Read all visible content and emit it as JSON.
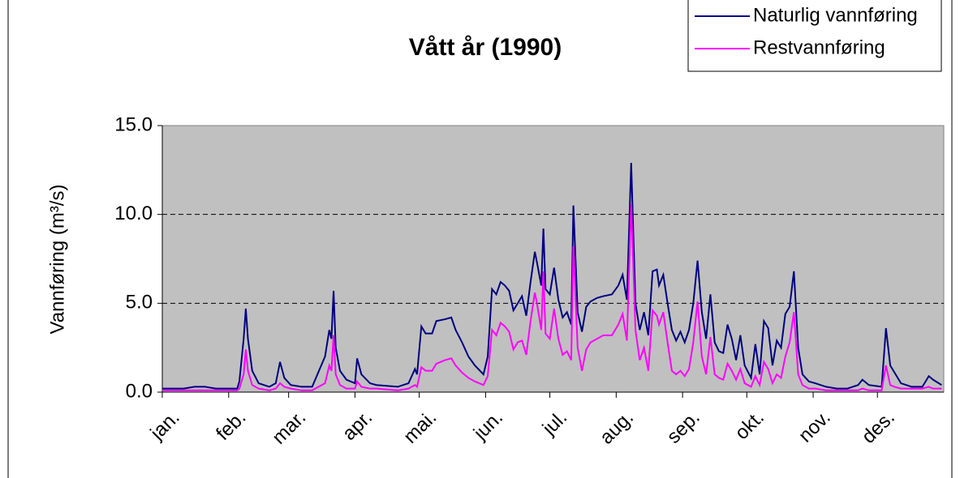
{
  "chart_data": {
    "type": "line",
    "title": "Vått år (1990)",
    "ylabel": "Vannføring (m³/s)",
    "x": [
      0,
      5,
      10,
      15,
      20,
      25,
      30,
      35,
      36,
      38,
      39,
      40,
      42,
      45,
      50,
      53,
      55,
      57,
      60,
      65,
      70,
      76,
      78,
      79,
      80,
      81,
      83,
      86,
      90,
      91,
      93,
      97,
      100,
      110,
      115,
      118,
      119,
      121,
      123,
      126,
      128,
      132,
      135,
      137,
      140,
      143,
      146,
      150,
      152,
      154,
      156,
      158,
      160,
      162,
      164,
      166,
      168,
      170,
      172,
      174,
      175,
      177,
      178,
      179,
      181,
      183,
      185,
      187,
      189,
      191,
      192,
      194,
      196,
      198,
      200,
      203,
      206,
      210,
      213,
      215,
      217,
      219,
      221,
      223,
      225,
      227,
      229,
      231,
      232,
      234,
      236,
      238,
      240,
      242,
      244,
      246,
      248,
      250,
      252,
      254,
      256,
      258,
      260,
      262,
      264,
      266,
      268,
      270,
      272,
      275,
      277,
      279,
      281,
      283,
      285,
      287,
      289,
      291,
      293,
      295,
      297,
      299,
      302,
      305,
      310,
      315,
      320,
      325,
      327,
      330,
      336,
      338,
      340,
      342,
      345,
      350,
      355,
      358,
      360,
      364
    ],
    "series": [
      {
        "name": "Naturlig vannføring",
        "color": "#000080",
        "values": [
          0.2,
          0.2,
          0.2,
          0.3,
          0.3,
          0.2,
          0.2,
          0.2,
          0.6,
          3.0,
          4.7,
          3.0,
          1.2,
          0.5,
          0.3,
          0.5,
          1.7,
          0.8,
          0.4,
          0.3,
          0.3,
          2.0,
          3.5,
          3.0,
          5.7,
          2.5,
          1.2,
          0.7,
          0.5,
          1.9,
          1.0,
          0.5,
          0.4,
          0.3,
          0.5,
          1.3,
          1.0,
          3.7,
          3.3,
          3.3,
          4.0,
          4.1,
          4.2,
          3.5,
          2.8,
          2.0,
          1.5,
          1.0,
          2.0,
          5.8,
          5.5,
          6.2,
          6.0,
          5.7,
          4.6,
          5.0,
          5.4,
          4.3,
          6.2,
          7.9,
          7.3,
          6.0,
          9.2,
          5.8,
          5.5,
          7.0,
          5.2,
          4.2,
          4.5,
          3.8,
          10.5,
          4.5,
          3.4,
          4.8,
          5.1,
          5.3,
          5.4,
          5.5,
          6.0,
          6.6,
          5.2,
          12.9,
          5.0,
          3.5,
          4.5,
          3.2,
          6.8,
          6.9,
          6.0,
          6.6,
          5.0,
          3.5,
          2.9,
          3.4,
          2.8,
          3.5,
          5.0,
          7.4,
          4.5,
          3.0,
          5.5,
          2.8,
          2.3,
          2.2,
          3.8,
          3.0,
          1.8,
          3.2,
          1.5,
          0.8,
          2.7,
          1.0,
          4.0,
          3.6,
          1.5,
          2.9,
          2.5,
          4.4,
          4.8,
          6.8,
          2.5,
          1.0,
          0.6,
          0.5,
          0.3,
          0.2,
          0.2,
          0.4,
          0.7,
          0.4,
          0.3,
          3.6,
          1.5,
          1.1,
          0.5,
          0.3,
          0.3,
          0.9,
          0.7,
          0.4
        ]
      },
      {
        "name": "Restvannføring",
        "color": "#ff00ff",
        "values": [
          0.1,
          0.1,
          0.1,
          0.1,
          0.1,
          0.1,
          0.1,
          0.1,
          0.2,
          1.0,
          2.4,
          1.2,
          0.4,
          0.2,
          0.1,
          0.2,
          0.5,
          0.3,
          0.2,
          0.1,
          0.1,
          0.5,
          1.5,
          1.2,
          3.2,
          1.0,
          0.4,
          0.2,
          0.2,
          0.6,
          0.3,
          0.2,
          0.2,
          0.1,
          0.2,
          0.4,
          0.3,
          1.4,
          1.2,
          1.2,
          1.6,
          1.8,
          1.9,
          1.5,
          1.1,
          0.8,
          0.6,
          0.4,
          0.9,
          3.5,
          3.2,
          3.9,
          3.7,
          3.4,
          2.4,
          2.8,
          2.9,
          2.1,
          4.0,
          5.6,
          5.0,
          3.5,
          6.8,
          3.3,
          3.0,
          4.7,
          3.0,
          2.1,
          2.3,
          1.8,
          8.2,
          2.5,
          1.2,
          2.4,
          2.8,
          3.0,
          3.2,
          3.2,
          3.8,
          4.4,
          2.9,
          10.6,
          3.5,
          1.8,
          2.5,
          1.2,
          4.6,
          4.3,
          3.8,
          4.5,
          2.8,
          1.2,
          1.0,
          1.2,
          0.9,
          1.3,
          2.8,
          5.1,
          2.0,
          1.0,
          3.1,
          1.0,
          0.8,
          0.7,
          1.6,
          1.2,
          0.7,
          1.3,
          0.5,
          0.3,
          0.9,
          0.4,
          1.7,
          1.3,
          0.5,
          1.0,
          0.8,
          2.0,
          2.8,
          4.5,
          1.0,
          0.4,
          0.2,
          0.2,
          0.1,
          0.1,
          0.1,
          0.1,
          0.2,
          0.1,
          0.1,
          1.5,
          0.4,
          0.3,
          0.2,
          0.2,
          0.2,
          0.3,
          0.2,
          0.2
        ]
      }
    ],
    "xlim": [
      0,
      365
    ],
    "xticks": [
      {
        "value": 0,
        "label": "jan."
      },
      {
        "value": 31,
        "label": "feb."
      },
      {
        "value": 59,
        "label": "mar."
      },
      {
        "value": 90,
        "label": "apr."
      },
      {
        "value": 120,
        "label": "mai."
      },
      {
        "value": 151,
        "label": "jun."
      },
      {
        "value": 181,
        "label": "jul."
      },
      {
        "value": 212,
        "label": "aug."
      },
      {
        "value": 243,
        "label": "sep."
      },
      {
        "value": 273,
        "label": "okt."
      },
      {
        "value": 304,
        "label": "nov."
      },
      {
        "value": 334,
        "label": "des."
      }
    ],
    "ylim": [
      0,
      15
    ],
    "yticks": [
      {
        "value": 0,
        "label": "0.0"
      },
      {
        "value": 5,
        "label": "5.0"
      },
      {
        "value": 10,
        "label": "10.0"
      },
      {
        "value": 15,
        "label": "15.0"
      }
    ],
    "grid": true,
    "legend": "top-right"
  }
}
